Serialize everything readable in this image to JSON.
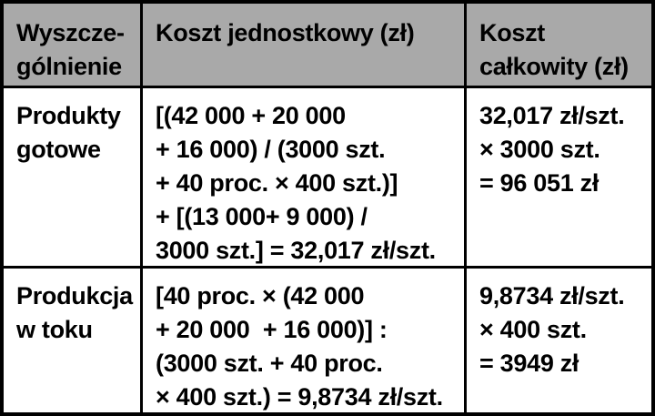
{
  "table": {
    "header": {
      "specification": "Wyszcze-\ngólnienie",
      "unit_cost": "Koszt jednostkowy (zł)",
      "total_cost": "Koszt\ncałkowity (zł)"
    },
    "rows": [
      {
        "label": "Produkty\ngotowe",
        "unit_cost": "[(42 000 + 20 000\n+ 16 000) / (3000 szt.\n+ 40 proc. × 400 szt.)]\n+ [(13 000+ 9 000) /\n3000 szt.] = 32,017 zł/szt.",
        "total_cost": "32,017 zł/szt.\n× 3000 szt.\n= 96 051 zł"
      },
      {
        "label": "Produkcja\nw toku",
        "unit_cost": "[40 proc. × (42 000\n+ 20 000  + 16 000)] :\n(3000 szt. + 40 proc.\n× 400 szt.) = 9,8734 zł/szt.",
        "total_cost": "9,8734 zł/szt.\n× 400 szt.\n= 3949 zł"
      }
    ]
  },
  "colors": {
    "header_bg": "#a9a9a9",
    "border": "#000000",
    "text": "#000000",
    "background": "#ffffff"
  }
}
